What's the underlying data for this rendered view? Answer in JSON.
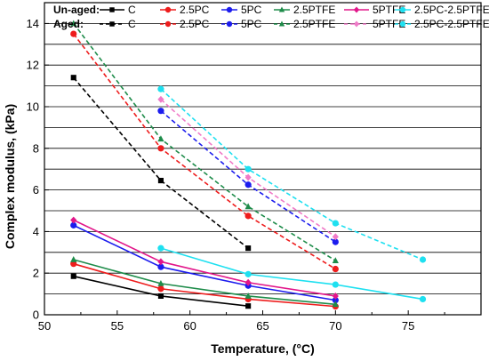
{
  "chart_data": {
    "type": "line",
    "xlabel": "Temperature, (°C)",
    "ylabel": "Complex modulus, (kPa)",
    "xlim": [
      50,
      80
    ],
    "ylim": [
      0,
      15
    ],
    "xticks": [
      50,
      55,
      60,
      65,
      70,
      75
    ],
    "yticks": [
      0,
      2,
      4,
      6,
      8,
      10,
      12,
      14
    ],
    "grid": "horizontal",
    "legend_position": "top",
    "legend_groups": [
      "Un-aged:",
      "Aged:"
    ],
    "series": [
      {
        "name": "C",
        "group": "Un-aged",
        "color": "#000000",
        "style": "solid",
        "marker": "square",
        "x": [
          52,
          58,
          64
        ],
        "y": [
          1.85,
          0.9,
          0.42
        ]
      },
      {
        "name": "2.5PC",
        "group": "Un-aged",
        "color": "#ee1c1c",
        "style": "solid",
        "marker": "circle",
        "x": [
          52,
          58,
          64,
          70
        ],
        "y": [
          2.45,
          1.25,
          0.75,
          0.4
        ]
      },
      {
        "name": "5PC",
        "group": "Un-aged",
        "color": "#1c1cee",
        "style": "solid",
        "marker": "circle",
        "x": [
          52,
          58,
          64,
          70
        ],
        "y": [
          4.3,
          2.3,
          1.4,
          0.7
        ]
      },
      {
        "name": "2.5PTFE",
        "group": "Un-aged",
        "color": "#1e8c4a",
        "style": "solid",
        "marker": "triangle",
        "x": [
          52,
          58,
          64,
          70
        ],
        "y": [
          2.65,
          1.5,
          0.9,
          0.5
        ]
      },
      {
        "name": "5PTFE",
        "group": "Un-aged",
        "color": "#e2168a",
        "style": "solid",
        "marker": "diamond",
        "x": [
          52,
          58,
          64,
          70
        ],
        "y": [
          4.55,
          2.55,
          1.55,
          0.9
        ]
      },
      {
        "name": "2.5PC-2.5PTFE",
        "group": "Un-aged",
        "color": "#1ee0f0",
        "style": "solid",
        "marker": "circle",
        "x": [
          58,
          64,
          70,
          76
        ],
        "y": [
          3.2,
          1.95,
          1.45,
          0.75
        ]
      },
      {
        "name": "C",
        "group": "Aged",
        "color": "#000000",
        "style": "dashed",
        "marker": "square",
        "x": [
          52,
          58,
          64
        ],
        "y": [
          11.4,
          6.45,
          3.2
        ]
      },
      {
        "name": "2.5PC",
        "group": "Aged",
        "color": "#ee1c1c",
        "style": "dashed",
        "marker": "circle",
        "x": [
          52,
          58,
          64,
          70
        ],
        "y": [
          13.5,
          8.0,
          4.75,
          2.2
        ]
      },
      {
        "name": "5PC",
        "group": "Aged",
        "color": "#1c1cee",
        "style": "dashed",
        "marker": "circle",
        "x": [
          58,
          64,
          70
        ],
        "y": [
          9.8,
          6.25,
          3.5
        ]
      },
      {
        "name": "2.5PTFE",
        "group": "Aged",
        "color": "#1e8c4a",
        "style": "dashed",
        "marker": "triangle",
        "x": [
          52,
          58,
          64,
          70
        ],
        "y": [
          14.0,
          8.45,
          5.2,
          2.6
        ]
      },
      {
        "name": "5PTFE",
        "group": "Aged",
        "color": "#f07ac8",
        "style": "dashed",
        "marker": "diamond",
        "x": [
          58,
          64,
          70
        ],
        "y": [
          10.35,
          6.6,
          3.75
        ]
      },
      {
        "name": "2.5PC-2.5PTFE",
        "group": "Aged",
        "color": "#1ee0f0",
        "style": "dashed",
        "marker": "circle",
        "x": [
          58,
          64,
          70,
          76
        ],
        "y": [
          10.85,
          7.0,
          4.4,
          2.65
        ]
      }
    ]
  }
}
